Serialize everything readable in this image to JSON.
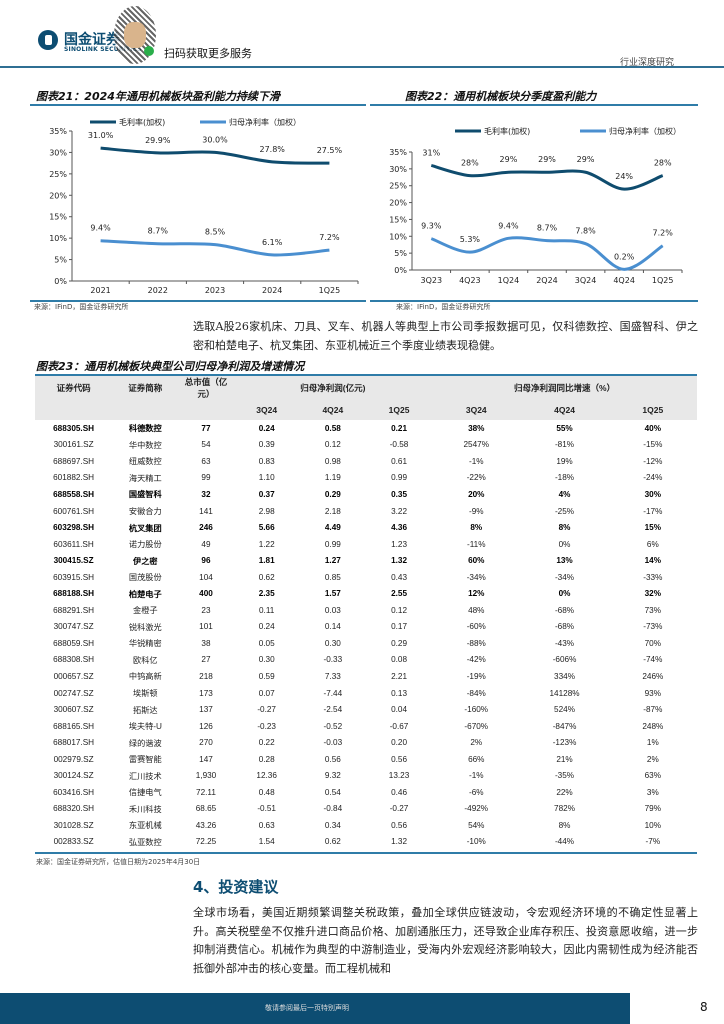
{
  "header": {
    "logo_cn": "国金证券",
    "logo_en": "SINOLINK SECURITIES",
    "scan_text": "扫码获取更多服务",
    "doc_type": "行业深度研究"
  },
  "fig21": {
    "title": "图表21：2024年通用机械板块盈利能力持续下滑",
    "source": "来源：IFinD，国金证券研究所"
  },
  "fig22": {
    "title": "图表22：通用机械板块分季度盈利能力",
    "source": "来源：IFinD，国金证券研究所"
  },
  "chart_data": [
    {
      "type": "line",
      "title": "图表21：2024年通用机械板块盈利能力持续下滑",
      "categories": [
        "2021",
        "2022",
        "2023",
        "2024",
        "1Q25"
      ],
      "ylim": [
        0,
        35
      ],
      "yticks": [
        "0%",
        "5%",
        "10%",
        "15%",
        "20%",
        "25%",
        "30%",
        "35%"
      ],
      "legend": "top",
      "series": [
        {
          "name": "毛利率(加权)",
          "values": [
            31.0,
            29.9,
            30.0,
            27.8,
            27.5
          ],
          "labels": [
            "31.0%",
            "29.9%",
            "30.0%",
            "27.8%",
            "27.5%"
          ],
          "color": "#0f4c6e"
        },
        {
          "name": "归母净利率（加权）",
          "values": [
            9.4,
            8.7,
            8.5,
            6.1,
            7.2
          ],
          "labels": [
            "9.4%",
            "8.7%",
            "8.5%",
            "6.1%",
            "7.2%"
          ],
          "color": "#4a8fd0"
        }
      ]
    },
    {
      "type": "line",
      "title": "图表22：通用机械板块分季度盈利能力",
      "categories": [
        "3Q23",
        "4Q23",
        "1Q24",
        "2Q24",
        "3Q24",
        "4Q24",
        "1Q25"
      ],
      "ylim": [
        0,
        35
      ],
      "yticks": [
        "0%",
        "5%",
        "10%",
        "15%",
        "20%",
        "25%",
        "30%",
        "35%"
      ],
      "legend": "top",
      "series": [
        {
          "name": "毛利率(加权)",
          "values": [
            31,
            28,
            29,
            29,
            29,
            24,
            28
          ],
          "labels": [
            "31%",
            "28%",
            "29%",
            "29%",
            "29%",
            "24%",
            "28%"
          ],
          "color": "#0f4c6e"
        },
        {
          "name": "归母净利率（加权）",
          "values": [
            9.3,
            5.3,
            9.4,
            8.7,
            7.8,
            0.2,
            7.2
          ],
          "labels": [
            "9.3%",
            "5.3%",
            "9.4%",
            "8.7%",
            "7.8%",
            "0.2%",
            "7.2%"
          ],
          "color": "#4a8fd0"
        }
      ]
    }
  ],
  "intro": "选取A股26家机床、刀具、叉车、机器人等典型上市公司季报数据可见，仅科德数控、国盛智科、伊之密和柏楚电子、杭叉集团、东亚机械近三个季度业绩表现稳健。",
  "table": {
    "title": "图表23：通用机械板块典型公司归母净利润及增速情况",
    "headers": {
      "code": "证券代码",
      "name": "证券简称",
      "cap": "总市值（亿元）",
      "profit": "归母净利润(亿元)",
      "growth": "归母净利润同比增速（%）",
      "q": [
        "3Q24",
        "4Q24",
        "1Q25",
        "3Q24",
        "4Q24",
        "1Q25"
      ]
    },
    "rows": [
      {
        "bold": true,
        "c": [
          "688305.SH",
          "科德数控",
          "77",
          "0.24",
          "0.58",
          "0.21",
          "38%",
          "55%",
          "40%"
        ]
      },
      {
        "bold": false,
        "c": [
          "300161.SZ",
          "华中数控",
          "54",
          "0.39",
          "0.12",
          "-0.58",
          "2547%",
          "-81%",
          "-15%"
        ]
      },
      {
        "bold": false,
        "c": [
          "688697.SH",
          "纽威数控",
          "63",
          "0.83",
          "0.98",
          "0.61",
          "-1%",
          "19%",
          "-12%"
        ]
      },
      {
        "bold": false,
        "c": [
          "601882.SH",
          "海天精工",
          "99",
          "1.10",
          "1.19",
          "0.99",
          "-22%",
          "-18%",
          "-24%"
        ]
      },
      {
        "bold": true,
        "c": [
          "688558.SH",
          "国盛智科",
          "32",
          "0.37",
          "0.29",
          "0.35",
          "20%",
          "4%",
          "30%"
        ]
      },
      {
        "bold": false,
        "c": [
          "600761.SH",
          "安徽合力",
          "141",
          "2.98",
          "2.18",
          "3.22",
          "-9%",
          "-25%",
          "-17%"
        ]
      },
      {
        "bold": true,
        "c": [
          "603298.SH",
          "杭叉集团",
          "246",
          "5.66",
          "4.49",
          "4.36",
          "8%",
          "8%",
          "15%"
        ]
      },
      {
        "bold": false,
        "c": [
          "603611.SH",
          "诺力股份",
          "49",
          "1.22",
          "0.99",
          "1.23",
          "-11%",
          "0%",
          "6%"
        ]
      },
      {
        "bold": true,
        "c": [
          "300415.SZ",
          "伊之密",
          "96",
          "1.81",
          "1.27",
          "1.32",
          "60%",
          "13%",
          "14%"
        ]
      },
      {
        "bold": false,
        "c": [
          "603915.SH",
          "国茂股份",
          "104",
          "0.62",
          "0.85",
          "0.43",
          "-34%",
          "-34%",
          "-33%"
        ]
      },
      {
        "bold": true,
        "c": [
          "688188.SH",
          "柏楚电子",
          "400",
          "2.35",
          "1.57",
          "2.55",
          "12%",
          "0%",
          "32%"
        ]
      },
      {
        "bold": false,
        "c": [
          "688291.SH",
          "金橙子",
          "23",
          "0.11",
          "0.03",
          "0.12",
          "48%",
          "-68%",
          "73%"
        ]
      },
      {
        "bold": false,
        "c": [
          "300747.SZ",
          "锐科激光",
          "101",
          "0.24",
          "0.14",
          "0.17",
          "-60%",
          "-68%",
          "-73%"
        ]
      },
      {
        "bold": false,
        "c": [
          "688059.SH",
          "华锐精密",
          "38",
          "0.05",
          "0.30",
          "0.29",
          "-88%",
          "-43%",
          "70%"
        ]
      },
      {
        "bold": false,
        "c": [
          "688308.SH",
          "欧科亿",
          "27",
          "0.30",
          "-0.33",
          "0.08",
          "-42%",
          "-606%",
          "-74%"
        ]
      },
      {
        "bold": false,
        "c": [
          "000657.SZ",
          "中钨高新",
          "218",
          "0.59",
          "7.33",
          "2.21",
          "-19%",
          "334%",
          "246%"
        ]
      },
      {
        "bold": false,
        "c": [
          "002747.SZ",
          "埃斯顿",
          "173",
          "0.07",
          "-7.44",
          "0.13",
          "-84%",
          "14128%",
          "93%"
        ]
      },
      {
        "bold": false,
        "c": [
          "300607.SZ",
          "拓斯达",
          "137",
          "-0.27",
          "-2.54",
          "0.04",
          "-160%",
          "524%",
          "-87%"
        ]
      },
      {
        "bold": false,
        "c": [
          "688165.SH",
          "埃夫特-U",
          "126",
          "-0.23",
          "-0.52",
          "-0.67",
          "-670%",
          "-847%",
          "248%"
        ]
      },
      {
        "bold": false,
        "c": [
          "688017.SH",
          "绿的谐波",
          "270",
          "0.22",
          "-0.03",
          "0.20",
          "2%",
          "-123%",
          "1%"
        ]
      },
      {
        "bold": false,
        "c": [
          "002979.SZ",
          "雷赛智能",
          "147",
          "0.28",
          "0.56",
          "0.56",
          "66%",
          "21%",
          "2%"
        ]
      },
      {
        "bold": false,
        "c": [
          "300124.SZ",
          "汇川技术",
          "1,930",
          "12.36",
          "9.32",
          "13.23",
          "-1%",
          "-35%",
          "63%"
        ]
      },
      {
        "bold": false,
        "c": [
          "603416.SH",
          "信捷电气",
          "72.11",
          "0.48",
          "0.54",
          "0.46",
          "-6%",
          "22%",
          "3%"
        ]
      },
      {
        "bold": false,
        "c": [
          "688320.SH",
          "禾川科技",
          "68.65",
          "-0.51",
          "-0.84",
          "-0.27",
          "-492%",
          "782%",
          "79%"
        ]
      },
      {
        "bold": false,
        "c": [
          "301028.SZ",
          "东亚机械",
          "43.26",
          "0.63",
          "0.34",
          "0.56",
          "54%",
          "8%",
          "10%"
        ]
      },
      {
        "bold": false,
        "c": [
          "002833.SZ",
          "弘亚数控",
          "72.25",
          "1.54",
          "0.62",
          "1.32",
          "-10%",
          "-44%",
          "-7%"
        ]
      }
    ],
    "source": "来源：国金证券研究所，估值日期为2025年4月30日"
  },
  "section": {
    "title": "4、投资建议",
    "body": "全球市场看，美国近期频繁调整关税政策，叠加全球供应链波动，令宏观经济环境的不确定性显著上升。高关税壁垒不仅推升进口商品价格、加剧通胀压力，还导致企业库存积压、投资意愿收缩，进一步抑制消费信心。机械作为典型的中游制造业，受海内外宏观经济影响较大，因此内需韧性成为经济能否抵御外部冲击的核心变量。而工程机械和"
  },
  "footer": {
    "text": "敬请参阅最后一页特别声明",
    "page": "8"
  }
}
